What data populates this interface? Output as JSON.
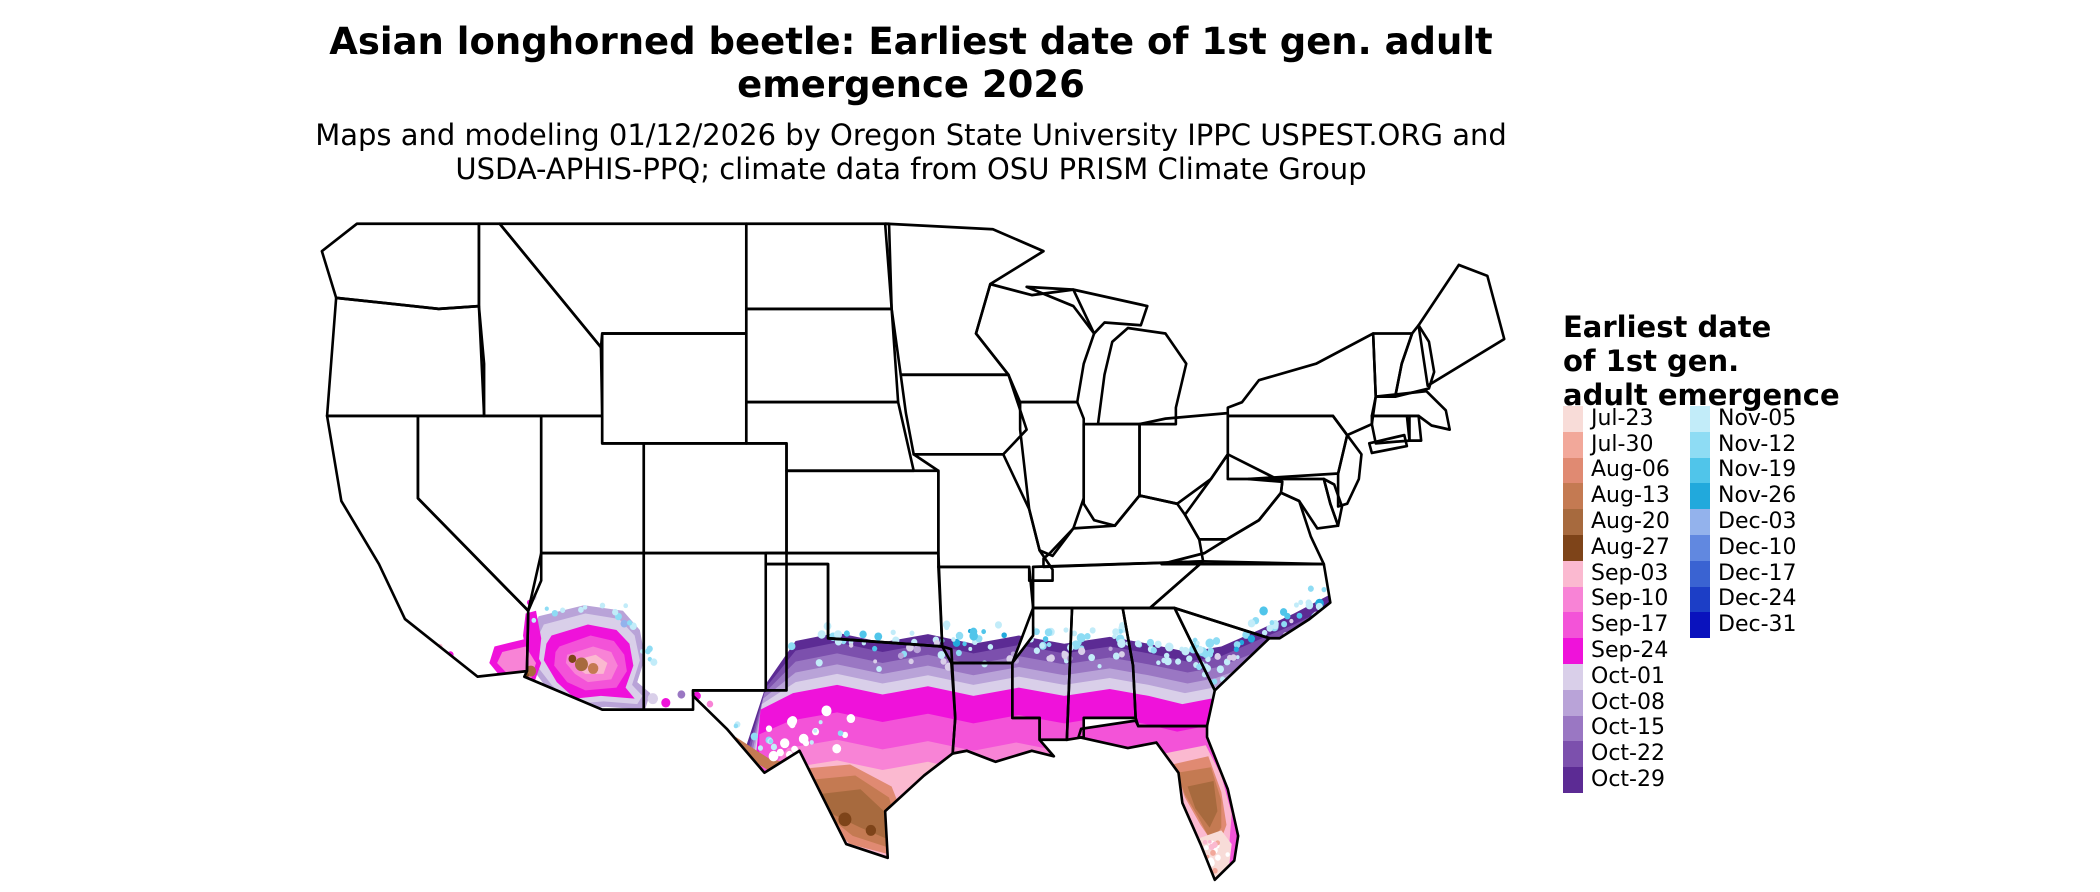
{
  "title": {
    "line1": "Asian longhorned beetle: Earliest date of 1st gen. adult",
    "line2": "emergence 2026"
  },
  "subtitle": {
    "line1": "Maps and modeling 01/12/2026 by Oregon State University IPPC USPEST.ORG and",
    "line2": "USDA-APHIS-PPQ; climate data from OSU PRISM Climate Group"
  },
  "legend": {
    "title_lines": [
      "Earliest date",
      "of 1st gen.",
      "adult emergence"
    ],
    "entries": [
      {
        "label": "Jul-23",
        "color": "#f8dcd8"
      },
      {
        "label": "Jul-30",
        "color": "#f2a89a"
      },
      {
        "label": "Aug-06",
        "color": "#e08a72"
      },
      {
        "label": "Aug-13",
        "color": "#c47a52"
      },
      {
        "label": "Aug-20",
        "color": "#a76a3e"
      },
      {
        "label": "Aug-27",
        "color": "#7e4419"
      },
      {
        "label": "Sep-03",
        "color": "#fbb9d0"
      },
      {
        "label": "Sep-10",
        "color": "#f883d6"
      },
      {
        "label": "Sep-17",
        "color": "#f353d8"
      },
      {
        "label": "Sep-24",
        "color": "#ef12da"
      },
      {
        "label": "Oct-01",
        "color": "#d9cfe9"
      },
      {
        "label": "Oct-08",
        "color": "#b9a3d8"
      },
      {
        "label": "Oct-15",
        "color": "#9a77c3"
      },
      {
        "label": "Oct-22",
        "color": "#7c50ad"
      },
      {
        "label": "Oct-29",
        "color": "#5c2b94"
      },
      {
        "label": "Nov-05",
        "color": "#c2ecf9"
      },
      {
        "label": "Nov-12",
        "color": "#8edcf4"
      },
      {
        "label": "Nov-19",
        "color": "#50c5ea"
      },
      {
        "label": "Nov-26",
        "color": "#21a9dc"
      },
      {
        "label": "Dec-03",
        "color": "#93b2ec"
      },
      {
        "label": "Dec-10",
        "color": "#6188e0"
      },
      {
        "label": "Dec-17",
        "color": "#3a63d2"
      },
      {
        "label": "Dec-24",
        "color": "#1c3ec6"
      },
      {
        "label": "Dec-31",
        "color": "#0a12bd"
      }
    ]
  }
}
